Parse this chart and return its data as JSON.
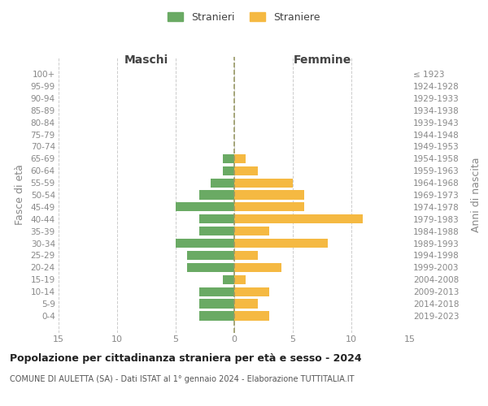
{
  "age_groups": [
    "100+",
    "95-99",
    "90-94",
    "85-89",
    "80-84",
    "75-79",
    "70-74",
    "65-69",
    "60-64",
    "55-59",
    "50-54",
    "45-49",
    "40-44",
    "35-39",
    "30-34",
    "25-29",
    "20-24",
    "15-19",
    "10-14",
    "5-9",
    "0-4"
  ],
  "birth_years": [
    "≤ 1923",
    "1924-1928",
    "1929-1933",
    "1934-1938",
    "1939-1943",
    "1944-1948",
    "1949-1953",
    "1954-1958",
    "1959-1963",
    "1964-1968",
    "1969-1973",
    "1974-1978",
    "1979-1983",
    "1984-1988",
    "1989-1993",
    "1994-1998",
    "1999-2003",
    "2004-2008",
    "2009-2013",
    "2014-2018",
    "2019-2023"
  ],
  "males": [
    0,
    0,
    0,
    0,
    0,
    0,
    0,
    1,
    1,
    2,
    3,
    5,
    3,
    3,
    5,
    4,
    4,
    1,
    3,
    3,
    3
  ],
  "females": [
    0,
    0,
    0,
    0,
    0,
    0,
    0,
    1,
    2,
    5,
    6,
    6,
    11,
    3,
    8,
    2,
    4,
    1,
    3,
    2,
    3
  ],
  "male_color": "#6aaa64",
  "female_color": "#f5b942",
  "male_label": "Stranieri",
  "female_label": "Straniere",
  "title_maschi": "Maschi",
  "title_femmine": "Femmine",
  "ylabel_left": "Fasce di età",
  "ylabel_right": "Anni di nascita",
  "xlim": 15,
  "main_title": "Popolazione per cittadinanza straniera per età e sesso - 2024",
  "subtitle": "COMUNE DI AULETTA (SA) - Dati ISTAT al 1° gennaio 2024 - Elaborazione TUTTITALIA.IT",
  "bg_color": "#ffffff",
  "grid_color": "#cccccc",
  "center_line_color": "#999966",
  "tick_color": "#888888"
}
